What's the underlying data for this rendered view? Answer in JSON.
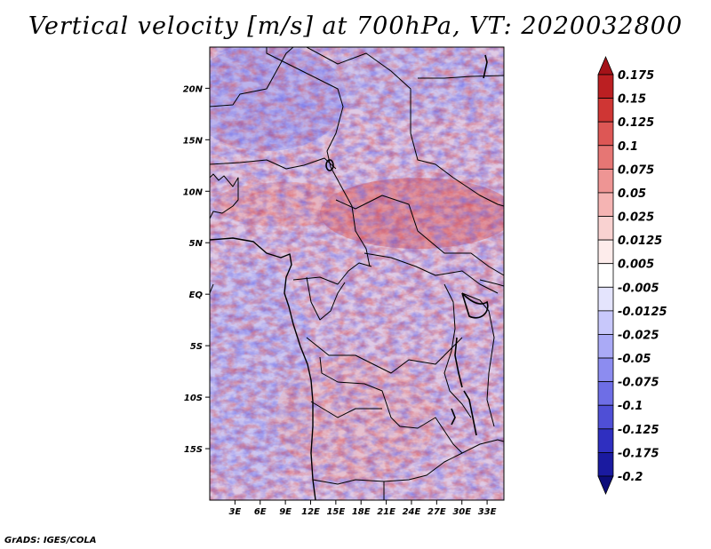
{
  "title": "Vertical velocity [m/s] at 700hPa, VT: 2020032800",
  "credit": "GrADS: IGES/COLA",
  "chart_data": {
    "type": "heatmap",
    "title": "Vertical velocity [m/s] at 700hPa, VT: 2020032800",
    "variable": "Vertical velocity",
    "units": "m/s",
    "level": "700hPa",
    "valid_time": "2020032800",
    "x_range_deg": [
      0,
      35
    ],
    "y_range_deg": [
      -20,
      24
    ],
    "x_ticks": [
      {
        "label": "3E",
        "lon": 3
      },
      {
        "label": "6E",
        "lon": 6
      },
      {
        "label": "9E",
        "lon": 9
      },
      {
        "label": "12E",
        "lon": 12
      },
      {
        "label": "15E",
        "lon": 15
      },
      {
        "label": "18E",
        "lon": 18
      },
      {
        "label": "21E",
        "lon": 21
      },
      {
        "label": "24E",
        "lon": 24
      },
      {
        "label": "27E",
        "lon": 27
      },
      {
        "label": "30E",
        "lon": 30
      },
      {
        "label": "33E",
        "lon": 33
      }
    ],
    "y_ticks": [
      {
        "label": "20N",
        "lat": 20
      },
      {
        "label": "15N",
        "lat": 15
      },
      {
        "label": "10N",
        "lat": 10
      },
      {
        "label": "5N",
        "lat": 5
      },
      {
        "label": "EQ",
        "lat": 0
      },
      {
        "label": "5S",
        "lat": -5
      },
      {
        "label": "10S",
        "lat": -10
      },
      {
        "label": "15S",
        "lat": -15
      }
    ],
    "colorbar": {
      "labels": [
        "0.175",
        "0.15",
        "0.125",
        "0.1",
        "0.075",
        "0.05",
        "0.025",
        "0.0125",
        "0.005",
        "-0.005",
        "-0.0125",
        "-0.025",
        "-0.05",
        "-0.075",
        "-0.1",
        "-0.125",
        "-0.175",
        "-0.2"
      ],
      "colors": [
        "#a41218",
        "#bb1f22",
        "#cf3634",
        "#dd5755",
        "#e67674",
        "#ee9594",
        "#f5b4b3",
        "#f9d2d1",
        "#fdeceb",
        "#ffffff",
        "#e4e4fd",
        "#c8c8fb",
        "#aaaaf6",
        "#8c8cf0",
        "#6e6ee6",
        "#4f4fd6",
        "#2f2fc0",
        "#1a1aa0",
        "#0d0d7a"
      ]
    }
  }
}
